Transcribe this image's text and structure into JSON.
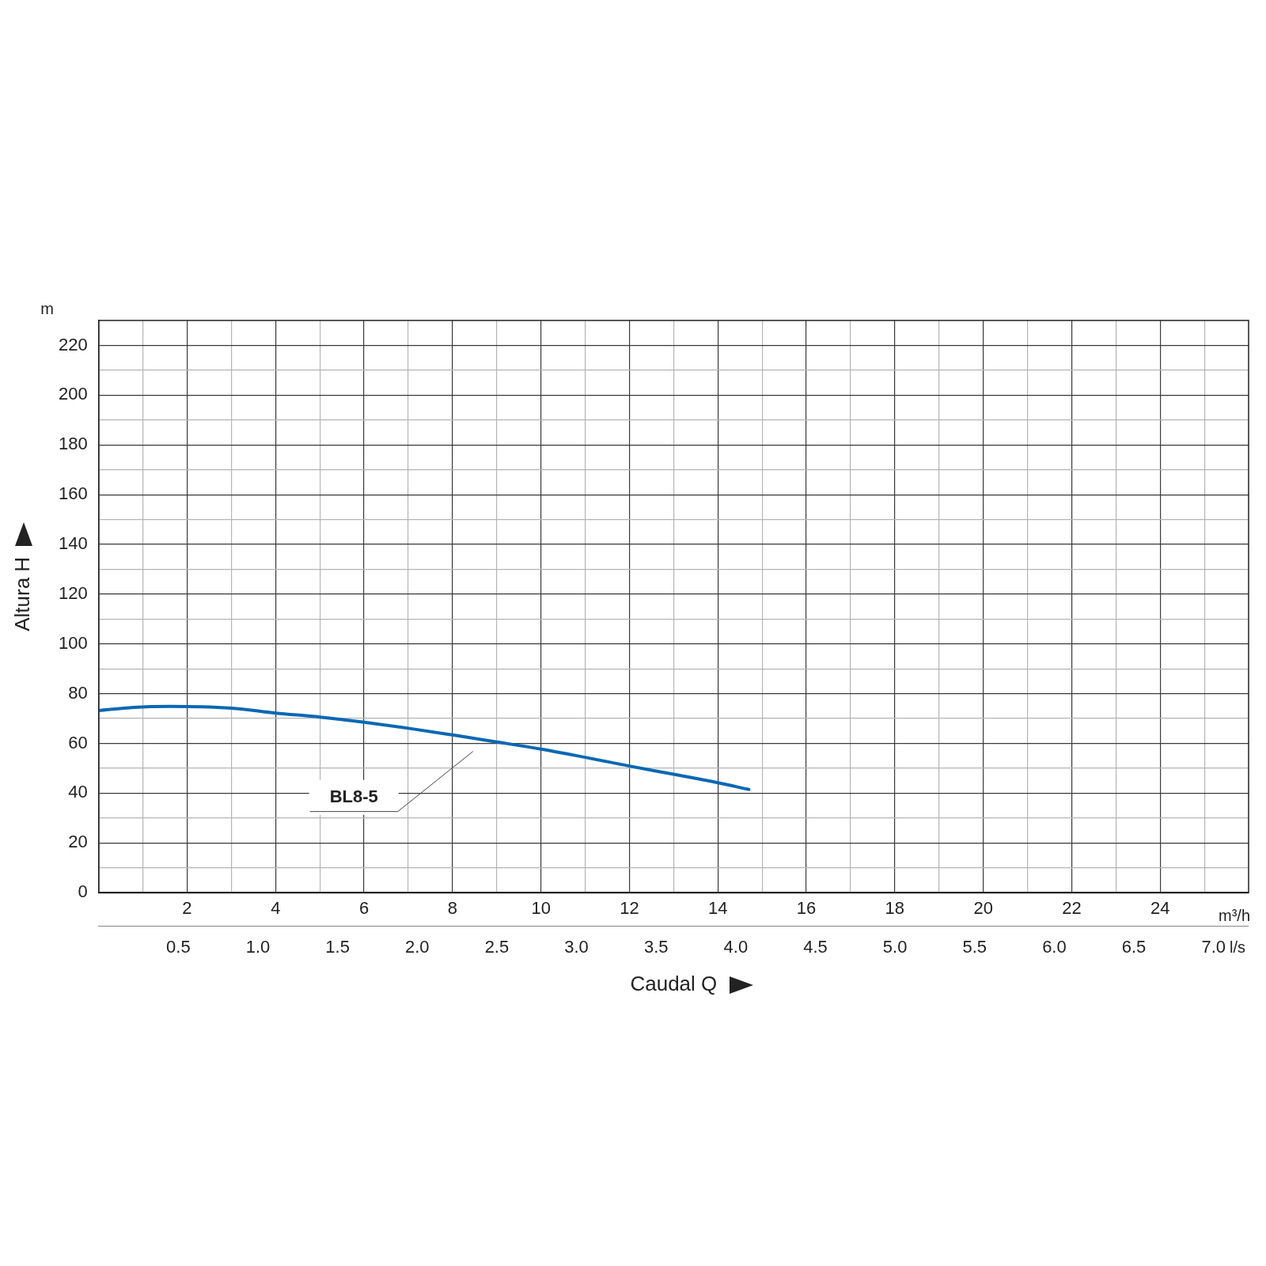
{
  "chart_data": {
    "type": "line",
    "xlabel": "Caudal Q",
    "ylabel": "Altura H",
    "annotations": [
      "m",
      "m³/h",
      "l/s"
    ],
    "x": [
      0,
      0.8,
      1.6,
      3,
      4,
      5,
      6,
      7,
      8,
      9,
      10,
      11,
      12,
      13,
      14,
      14.7
    ],
    "series": [
      {
        "name": "BL8-5",
        "color": "#0a68b4",
        "values": [
          73.2,
          74.5,
          74.9,
          74.2,
          72.2,
          70.6,
          68.5,
          66.1,
          63.4,
          60.6,
          57.7,
          54.4,
          50.9,
          47.6,
          44.2,
          41.5
        ]
      }
    ],
    "xlim": [
      0,
      26
    ],
    "xticks": [
      {
        "value": 0,
        "label": null
      },
      {
        "value": 1,
        "label": null
      },
      2,
      {
        "value": 3,
        "label": null
      },
      4,
      {
        "value": 5,
        "label": null
      },
      6,
      {
        "value": 7,
        "label": null
      },
      8,
      {
        "value": 9,
        "label": null
      },
      10,
      {
        "value": 11,
        "label": null
      },
      12,
      {
        "value": 13,
        "label": null
      },
      14,
      {
        "value": 15,
        "label": null
      },
      16,
      {
        "value": 17,
        "label": null
      },
      18,
      {
        "value": 19,
        "label": null
      },
      20,
      {
        "value": 21,
        "label": null
      },
      22,
      {
        "value": 23,
        "label": null
      },
      24,
      {
        "value": 25,
        "label": null
      }
    ],
    "x2lim": [
      0,
      7.22
    ],
    "x2ticks": [
      {
        "value": 0.5,
        "label": "0.5"
      },
      {
        "value": 1,
        "label": "1.0"
      },
      {
        "value": 1.5,
        "label": "1.5"
      },
      {
        "value": 2,
        "label": "2.0"
      },
      {
        "value": 2.5,
        "label": "2.5"
      },
      {
        "value": 3,
        "label": "3.0"
      },
      {
        "value": 3.5,
        "label": "3.5"
      },
      {
        "value": 4,
        "label": "4.0"
      },
      {
        "value": 4.5,
        "label": "4.5"
      },
      {
        "value": 5,
        "label": "5.0"
      },
      {
        "value": 5.5,
        "label": "5.5"
      },
      {
        "value": 6,
        "label": "6.0"
      },
      {
        "value": 6.5,
        "label": "6.5"
      },
      {
        "value": 7,
        "label": "7.0"
      }
    ],
    "ylim": [
      0,
      230
    ],
    "yticks": [
      0,
      {
        "value": 10,
        "label": null
      },
      20,
      {
        "value": 30,
        "label": null
      },
      40,
      {
        "value": 50,
        "label": null
      },
      60,
      {
        "value": 70,
        "label": null
      },
      80,
      {
        "value": 90,
        "label": null
      },
      100,
      {
        "value": 110,
        "label": null
      },
      120,
      {
        "value": 130,
        "label": null
      },
      140,
      {
        "value": 150,
        "label": null
      },
      160,
      {
        "value": 170,
        "label": null
      },
      180,
      {
        "value": 190,
        "label": null
      },
      200,
      {
        "value": 210,
        "label": null
      },
      220
    ],
    "grid": true,
    "legend": false,
    "marker": "none",
    "line_style": "solid"
  }
}
